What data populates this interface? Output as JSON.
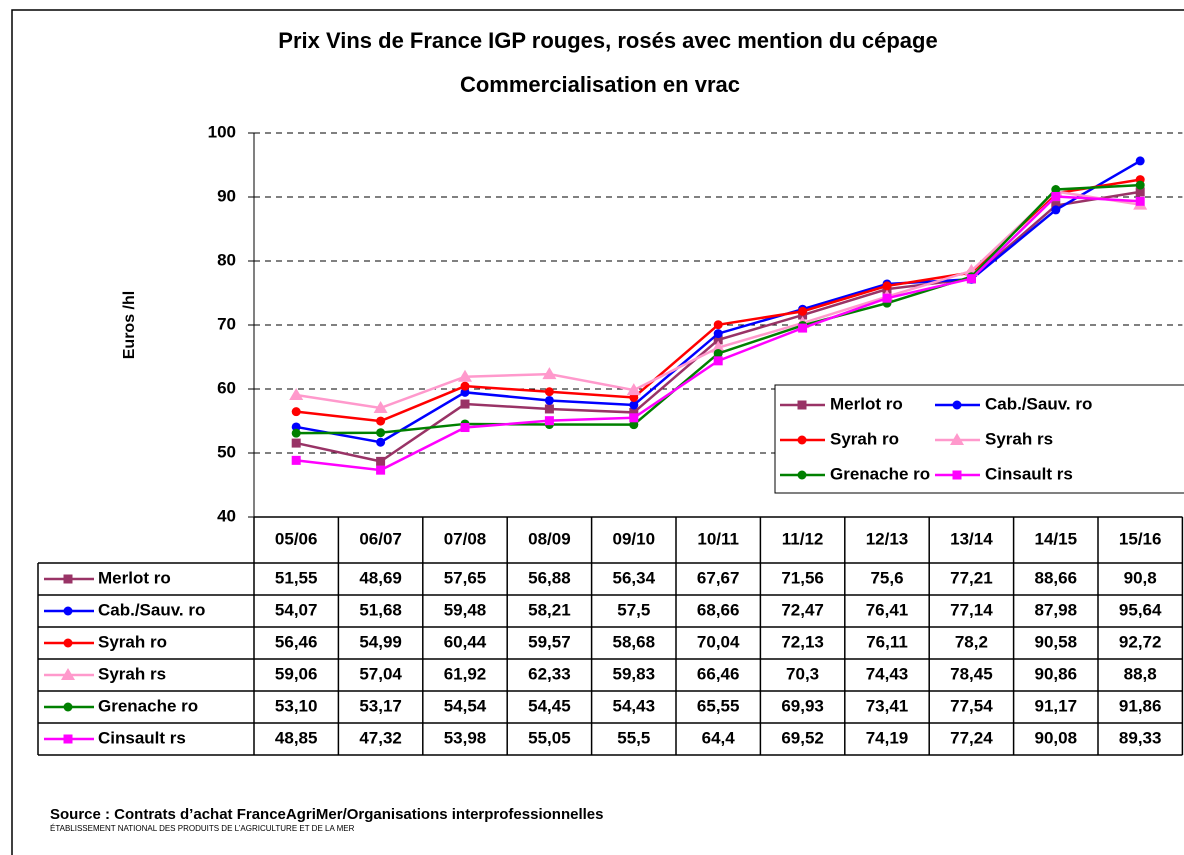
{
  "chart_data": {
    "type": "line",
    "title": "Prix Vins de France IGP rouges, rosés avec mention du cépage",
    "subtitle": "Commercialisation en vrac",
    "y_label": "Euros /hl",
    "categories": [
      "05/06",
      "06/07",
      "07/08",
      "08/09",
      "09/10",
      "10/11",
      "11/12",
      "12/13",
      "13/14",
      "14/15",
      "15/16"
    ],
    "ylim": [
      40,
      100
    ],
    "yticks": [
      40,
      50,
      60,
      70,
      80,
      90,
      100
    ],
    "grid": true,
    "series": [
      {
        "name": "Merlot ro",
        "color": "#993366",
        "marker": "square",
        "values": [
          51.55,
          48.69,
          57.65,
          56.88,
          56.34,
          67.67,
          71.56,
          75.6,
          77.21,
          88.66,
          90.8
        ],
        "value_labels": [
          "51,55",
          "48,69",
          "57,65",
          "56,88",
          "56,34",
          "67,67",
          "71,56",
          "75,6",
          "77,21",
          "88,66",
          "90,8"
        ]
      },
      {
        "name": "Cab./Sauv. ro",
        "color": "#0000ff",
        "marker": "circle",
        "values": [
          54.07,
          51.68,
          59.48,
          58.21,
          57.5,
          68.66,
          72.47,
          76.41,
          77.14,
          87.98,
          95.64
        ],
        "value_labels": [
          "54,07",
          "51,68",
          "59,48",
          "58,21",
          "57,5",
          "68,66",
          "72,47",
          "76,41",
          "77,14",
          "87,98",
          "95,64"
        ]
      },
      {
        "name": "Syrah ro",
        "color": "#ff0000",
        "marker": "circle",
        "values": [
          56.46,
          54.99,
          60.44,
          59.57,
          58.68,
          70.04,
          72.13,
          76.11,
          78.2,
          90.58,
          92.72
        ],
        "value_labels": [
          "56,46",
          "54,99",
          "60,44",
          "59,57",
          "58,68",
          "70,04",
          "72,13",
          "76,11",
          "78,2",
          "90,58",
          "92,72"
        ]
      },
      {
        "name": "Syrah rs",
        "color": "#ff99cc",
        "marker": "triangle",
        "values": [
          59.06,
          57.04,
          61.92,
          62.33,
          59.83,
          66.46,
          70.3,
          74.43,
          78.45,
          90.86,
          88.8
        ],
        "value_labels": [
          "59,06",
          "57,04",
          "61,92",
          "62,33",
          "59,83",
          "66,46",
          "70,3",
          "74,43",
          "78,45",
          "90,86",
          "88,8"
        ]
      },
      {
        "name": "Grenache ro",
        "color": "#008000",
        "marker": "circle",
        "values": [
          53.1,
          53.17,
          54.54,
          54.45,
          54.43,
          65.55,
          69.93,
          73.41,
          77.54,
          91.17,
          91.86
        ],
        "value_labels": [
          "53,10",
          "53,17",
          "54,54",
          "54,45",
          "54,43",
          "65,55",
          "69,93",
          "73,41",
          "77,54",
          "91,17",
          "91,86"
        ]
      },
      {
        "name": "Cinsault rs",
        "color": "#ff00ff",
        "marker": "square",
        "values": [
          48.85,
          47.32,
          53.98,
          55.05,
          55.5,
          64.4,
          69.52,
          74.19,
          77.24,
          90.08,
          89.33
        ],
        "value_labels": [
          "48,85",
          "47,32",
          "53,98",
          "55,05",
          "55,5",
          "64,4",
          "69,52",
          "74,19",
          "77,24",
          "90,08",
          "89,33"
        ]
      }
    ],
    "source": "Source : Contrats d’achat FranceAgriMer/Organisations interprofessionnelles",
    "footer": "ÉTABLISSEMENT NATIONAL DES PRODUITS DE L’AGRICULTURE ET DE LA MER"
  }
}
